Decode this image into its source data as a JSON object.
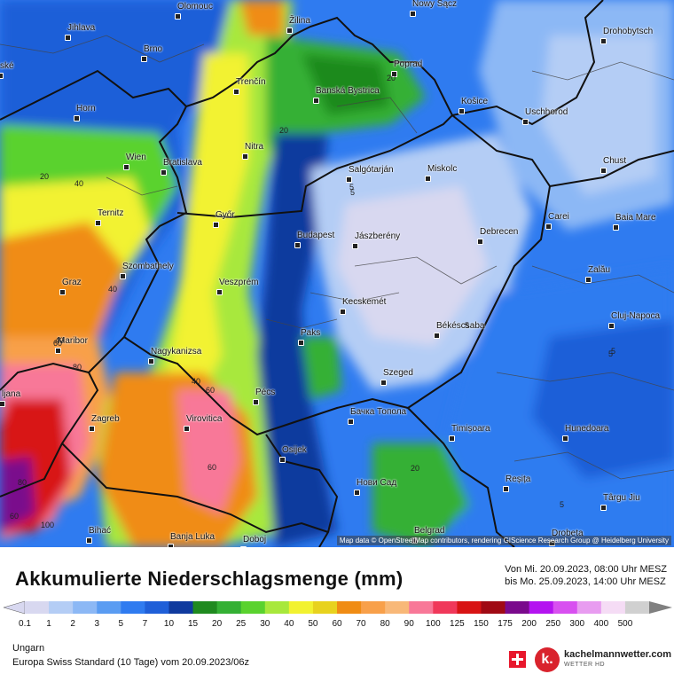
{
  "map": {
    "cities": [
      {
        "name": "Olomouc"
      },
      {
        "name": "Nowy Sącz"
      },
      {
        "name": "Jihlava"
      },
      {
        "name": "Žilina"
      },
      {
        "name": "Drohobytsch"
      },
      {
        "name": "Brno"
      },
      {
        "name": "Poprad"
      },
      {
        "name": "ské"
      },
      {
        "name": "Horn"
      },
      {
        "name": "Trenčín"
      },
      {
        "name": "Banská Bystrica"
      },
      {
        "name": "Košice"
      },
      {
        "name": "Uschhorod"
      },
      {
        "name": "Nitra"
      },
      {
        "name": "Wien"
      },
      {
        "name": "Bratislava"
      },
      {
        "name": "Salgótarján"
      },
      {
        "name": "Miskolc"
      },
      {
        "name": "Chust"
      },
      {
        "name": "Ternitz"
      },
      {
        "name": "Győr"
      },
      {
        "name": "Carei"
      },
      {
        "name": "Baia Mare"
      },
      {
        "name": "Budapest"
      },
      {
        "name": "Jászberény"
      },
      {
        "name": "Debrecen"
      },
      {
        "name": "Szombathely"
      },
      {
        "name": "Zalău"
      },
      {
        "name": "Graz"
      },
      {
        "name": "Veszprém"
      },
      {
        "name": "Kecskemét"
      },
      {
        "name": "Cluj-Napoca"
      },
      {
        "name": "Maribor"
      },
      {
        "name": "Paks"
      },
      {
        "name": "Békéscsaba"
      },
      {
        "name": "Nagykanizsa"
      },
      {
        "name": "Szeged"
      },
      {
        "name": "Pécs"
      },
      {
        "name": "ljana"
      },
      {
        "name": "Бачка Топола"
      },
      {
        "name": "Zagreb"
      },
      {
        "name": "Virovitica"
      },
      {
        "name": "Timișoara"
      },
      {
        "name": "Hunedoara"
      },
      {
        "name": "Osijek"
      },
      {
        "name": "Нови Сад"
      },
      {
        "name": "Reșița"
      },
      {
        "name": "Târgu Jiu"
      },
      {
        "name": "Bihać"
      },
      {
        "name": "Banja Luka"
      },
      {
        "name": "Doboj"
      },
      {
        "name": "Belgrad"
      },
      {
        "name": "Drobeta"
      }
    ],
    "contour_labels": [
      "20",
      "40",
      "20",
      "40",
      "40",
      "60",
      "80",
      "40",
      "60",
      "60",
      "20",
      "5",
      "5",
      "5",
      "5",
      "5",
      "5",
      "20",
      "60",
      "100",
      "80"
    ],
    "credit": "Map data © OpenStreetMap contributors, rendering GIScience Research Group @ Heidelberg University"
  },
  "footer": {
    "title": "Akkumulierte Niederschlagsmenge (mm)",
    "period_from": "Von Mi. 20.09.2023, 08:00 Uhr MESZ",
    "period_to": "bis Mo. 25.09.2023, 14:00 Uhr MESZ",
    "region": "Ungarn",
    "model": "Europa Swiss Standard (10 Tage) vom 20.09.2023/06z",
    "brand": "kachelmannwetter.com",
    "brand_sub": "WETTER HD",
    "logo_letter": "k."
  },
  "scale": {
    "unit": "mm",
    "ticks": [
      "0.1",
      "1",
      "2",
      "3",
      "5",
      "7",
      "10",
      "15",
      "20",
      "25",
      "30",
      "40",
      "50",
      "60",
      "70",
      "80",
      "90",
      "100",
      "125",
      "150",
      "175",
      "200",
      "250",
      "300",
      "400",
      "500"
    ],
    "colors": [
      "#d8d8f0",
      "#b4cdf5",
      "#8cb8f5",
      "#5a9cf2",
      "#2f7bf0",
      "#1f5fd8",
      "#0f3a9e",
      "#1f8a1f",
      "#34b034",
      "#5ad22e",
      "#a8e83c",
      "#f2f230",
      "#e8d21e",
      "#f08c14",
      "#f8a04a",
      "#f8b878",
      "#f87898",
      "#f0385a",
      "#d81414",
      "#a00a14",
      "#7a0a8c",
      "#b414f0",
      "#d850f0",
      "#e89cf0",
      "#f5dcf5",
      "#d0d0d0"
    ]
  }
}
